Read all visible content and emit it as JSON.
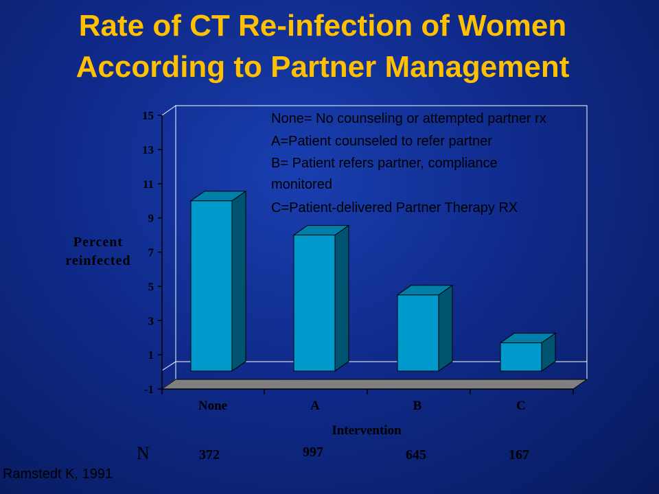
{
  "slide": {
    "title_line1": "Rate of CT Re-infection of Women",
    "title_line2": "According to Partner Management",
    "citation": "Ramstedt K, 1991",
    "n_label": "N",
    "n_values": [
      "372",
      "997",
      "645",
      "167"
    ]
  },
  "legend_notes": [
    "None= No counseling or attempted partner rx",
    "A=Patient counseled to refer partner",
    "B= Patient refers partner, compliance",
    "monitored",
    "C=Patient-delivered Partner Therapy RX"
  ],
  "colors": {
    "title": "#ffc000",
    "bar_front": "#0099cc",
    "bar_top": "#007fa8",
    "bar_side": "#00546f",
    "floor": "#808080"
  },
  "chart_data": {
    "type": "bar",
    "style": "3d",
    "categories": [
      "None",
      "A",
      "B",
      "C"
    ],
    "values": [
      10,
      8,
      4.5,
      1.7
    ],
    "xlabel": "Intervention",
    "ylabel_lines": [
      "Percent",
      "reinfected"
    ],
    "yticks": [
      "15",
      "13",
      "11",
      "9",
      "7",
      "5",
      "3",
      "1",
      "-1"
    ],
    "ylim": [
      -1,
      15
    ],
    "grid": false
  }
}
